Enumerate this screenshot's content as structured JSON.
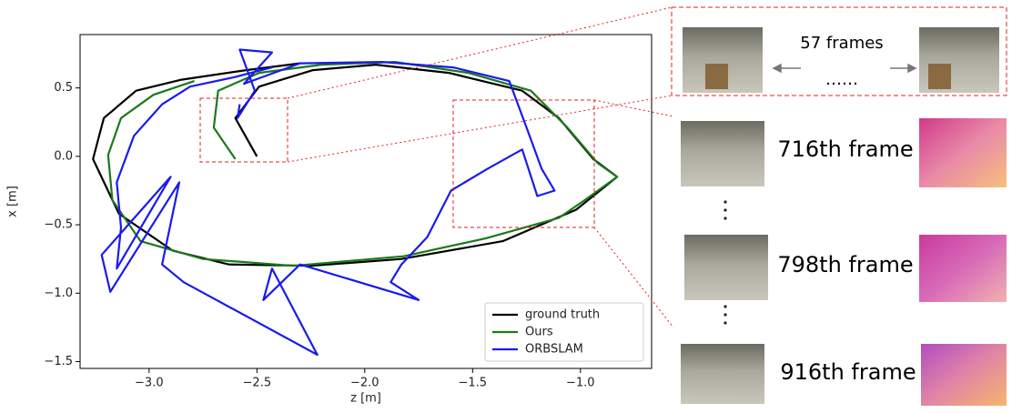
{
  "chart_data": {
    "type": "line",
    "xlabel": "z [m]",
    "ylabel": "x [m]",
    "xlim": [
      -3.32,
      -0.67
    ],
    "ylim": [
      -1.55,
      0.89
    ],
    "xticks": [
      {
        "value": -3.0,
        "label": "−3.0"
      },
      {
        "value": -2.5,
        "label": "−2.5"
      },
      {
        "value": -2.0,
        "label": "−2.0"
      },
      {
        "value": -1.5,
        "label": "−1.5"
      },
      {
        "value": -1.0,
        "label": "−1.0"
      }
    ],
    "yticks": [
      0.5,
      {
        "value": 0.0,
        "label": "0.0"
      },
      {
        "value": -0.5,
        "label": "−0.5"
      },
      {
        "value": -1.0,
        "label": "−1.0"
      },
      {
        "value": -1.5,
        "label": "−1.5"
      }
    ],
    "legend": "lower right",
    "series": [
      {
        "name": "ground truth",
        "color": "#000000",
        "x": [
          -2.5,
          -2.6,
          -2.49,
          -2.24,
          -1.95,
          -1.61,
          -1.27,
          -1.1,
          -0.94,
          -0.83,
          -1.02,
          -1.36,
          -1.83,
          -2.25,
          -2.63,
          -2.89,
          -3.14,
          -3.26,
          -3.21,
          -3.06,
          -2.85,
          -2.55,
          -2.3
        ],
        "values": [
          0.0,
          0.28,
          0.51,
          0.63,
          0.67,
          0.61,
          0.48,
          0.28,
          -0.02,
          -0.15,
          -0.39,
          -0.62,
          -0.75,
          -0.8,
          -0.79,
          -0.69,
          -0.42,
          -0.02,
          0.28,
          0.48,
          0.56,
          0.63,
          0.68
        ]
      },
      {
        "name": "Ours",
        "color": "#1a7a1a",
        "x": [
          -2.6,
          -2.7,
          -2.68,
          -2.49,
          -2.2,
          -1.86,
          -1.52,
          -1.23,
          -1.06,
          -0.92,
          -0.83,
          -0.98,
          -1.1,
          -1.44,
          -1.82,
          -2.33,
          -2.75,
          -3.04,
          -3.17,
          -3.19,
          -3.13,
          -2.98,
          -2.79
        ],
        "values": [
          -0.02,
          0.21,
          0.48,
          0.61,
          0.67,
          0.69,
          0.61,
          0.48,
          0.21,
          -0.05,
          -0.15,
          -0.32,
          -0.45,
          -0.6,
          -0.73,
          -0.8,
          -0.75,
          -0.62,
          -0.32,
          0.01,
          0.28,
          0.45,
          0.55
        ]
      },
      {
        "name": "ORBSLAM",
        "color": "#1a1aee",
        "x": [
          -2.58,
          -2.59,
          -2.51,
          -2.58,
          -2.43,
          -2.56,
          -2.3,
          -1.92,
          -1.59,
          -1.33,
          -1.25,
          -1.18,
          -1.12,
          -1.2,
          -1.27,
          -1.43,
          -1.6,
          -1.71,
          -1.83,
          -1.88,
          -1.75,
          -2.3,
          -2.47,
          -2.43,
          -2.22,
          -2.84,
          -2.94,
          -2.86,
          -3.18,
          -3.22,
          -2.9,
          -3.15,
          -3.13,
          -3.15,
          -3.07,
          -2.94,
          -2.81,
          -2.6,
          -2.43
        ],
        "values": [
          0.38,
          0.28,
          0.48,
          0.78,
          0.76,
          0.53,
          0.68,
          0.69,
          0.65,
          0.55,
          0.21,
          -0.09,
          -0.25,
          -0.29,
          0.05,
          -0.09,
          -0.25,
          -0.59,
          -0.79,
          -0.92,
          -1.05,
          -0.79,
          -1.05,
          -0.82,
          -1.45,
          -0.92,
          -0.79,
          -0.19,
          -0.99,
          -0.72,
          -0.15,
          -0.82,
          -0.52,
          -0.19,
          0.15,
          0.38,
          0.51,
          0.58,
          0.65
        ]
      }
    ]
  },
  "panels": {
    "top_label": "57  frames",
    "ellipsis": "……",
    "frames": [
      "716th frame",
      "798th frame",
      "916th frame"
    ]
  }
}
